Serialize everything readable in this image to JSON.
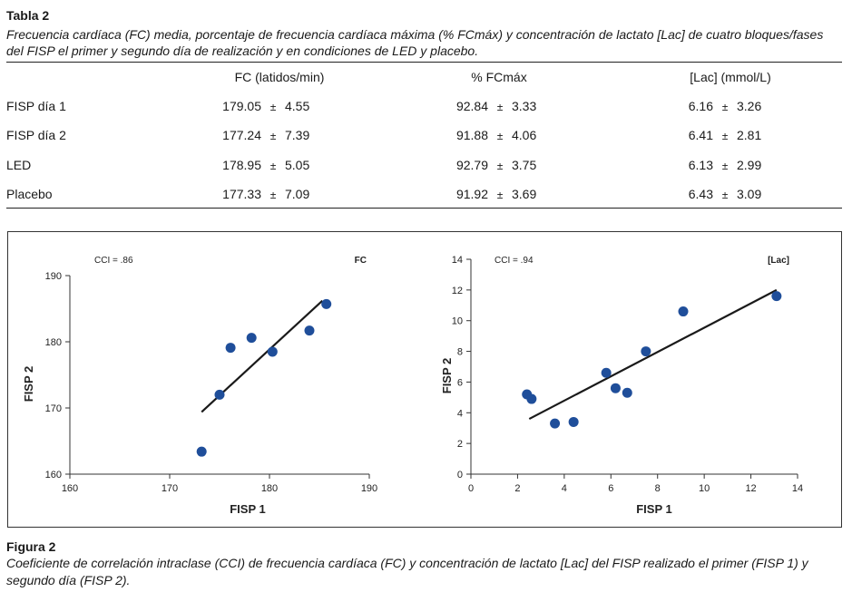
{
  "table": {
    "label": "Tabla 2",
    "caption": "Frecuencia cardíaca (FC) media, porcentaje de frecuencia cardíaca máxima (% FCmáx) y concentración de lactato [Lac] de cuatro bloques/fases del FISP el primer y segundo día de realización y en condiciones de LED y placebo.",
    "columns": [
      "FC (latidos/min)",
      "% FCmáx",
      "[Lac] (mmol/L)"
    ],
    "pm": "±",
    "rows": [
      {
        "label": "FISP día 1",
        "fc": [
          "179.05",
          "4.55"
        ],
        "fcmax": [
          "92.84",
          "3.33"
        ],
        "lac": [
          "6.16",
          "3.26"
        ]
      },
      {
        "label": "FISP día 2",
        "fc": [
          "177.24",
          "7.39"
        ],
        "fcmax": [
          "91.88",
          "4.06"
        ],
        "lac": [
          "6.41",
          "2.81"
        ]
      },
      {
        "label": "LED",
        "fc": [
          "178.95",
          "5.05"
        ],
        "fcmax": [
          "92.79",
          "3.75"
        ],
        "lac": [
          "6.13",
          "2.99"
        ]
      },
      {
        "label": "Placebo",
        "fc": [
          "177.33",
          "7.09"
        ],
        "fcmax": [
          "91.92",
          "3.69"
        ],
        "lac": [
          "6.43",
          "3.09"
        ]
      }
    ]
  },
  "figure": {
    "label": "Figura 2",
    "caption": "Coeficiente de correlación intraclase (CCI) de frecuencia cardíaca (FC) y concentración de lactato [Lac] del FISP realizado el primer (FISP 1) y segundo día (FISP 2)."
  },
  "chart_data": [
    {
      "type": "scatter",
      "title": "FC",
      "annotation": "CCI = .86",
      "xlabel": "FISP 1",
      "ylabel": "FISP 2",
      "xlim": [
        160,
        190
      ],
      "ylim": [
        160,
        190
      ],
      "xticks": [
        160,
        170,
        180,
        190
      ],
      "yticks": [
        160,
        170,
        180,
        190
      ],
      "x": [
        173.2,
        175.0,
        176.1,
        178.2,
        180.3,
        184.0,
        185.7
      ],
      "y": [
        163.4,
        172.0,
        179.1,
        180.6,
        178.5,
        181.7,
        185.7
      ],
      "fit_line": [
        [
          173.2,
          169.4
        ],
        [
          185.3,
          186.2
        ]
      ],
      "point_color": "#1f4e9a"
    },
    {
      "type": "scatter",
      "title": "[Lac]",
      "annotation": "CCI = .94",
      "xlabel": "FISP 1",
      "ylabel": "FISP 2",
      "xlim": [
        0,
        14
      ],
      "ylim": [
        0,
        14
      ],
      "xticks": [
        0,
        2,
        4,
        6,
        8,
        10,
        12,
        14
      ],
      "yticks": [
        0,
        2,
        4,
        6,
        8,
        10,
        12,
        14
      ],
      "x": [
        2.4,
        2.6,
        3.6,
        4.4,
        5.8,
        6.2,
        6.7,
        7.5,
        9.1,
        13.1
      ],
      "y": [
        5.2,
        4.9,
        3.3,
        3.4,
        6.6,
        5.6,
        5.3,
        8.0,
        10.6,
        11.6
      ],
      "fit_line": [
        [
          2.5,
          3.6
        ],
        [
          13.1,
          12.0
        ]
      ],
      "point_color": "#1f4e9a"
    }
  ]
}
